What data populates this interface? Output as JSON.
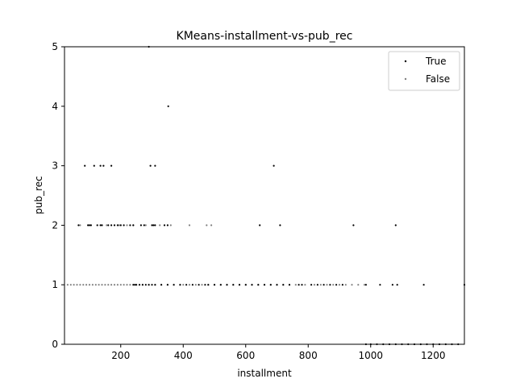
{
  "chart_data": {
    "type": "scatter",
    "title": "KMeans-installment-vs-pub_rec",
    "xlabel": "installment",
    "ylabel": "pub_rec",
    "xlim": [
      20,
      1300
    ],
    "ylim": [
      0,
      5
    ],
    "xticks": [
      200,
      400,
      600,
      800,
      1000,
      1200
    ],
    "yticks": [
      0,
      1,
      2,
      3,
      4,
      5
    ],
    "grid": false,
    "legend_position": "top-right",
    "series": [
      {
        "name": "True",
        "color": "#000000",
        "x": [
          290,
          352,
          85,
          115,
          135,
          145,
          170,
          295,
          310,
          690,
          65,
          95,
          100,
          105,
          125,
          135,
          140,
          160,
          170,
          180,
          190,
          200,
          210,
          230,
          240,
          265,
          275,
          300,
          305,
          310,
          340,
          350,
          645,
          710,
          945,
          1080,
          240,
          245,
          250,
          260,
          270,
          280,
          290,
          300,
          310,
          330,
          350,
          370,
          390,
          410,
          430,
          450,
          470,
          480,
          500,
          520,
          540,
          560,
          580,
          600,
          620,
          640,
          660,
          680,
          700,
          720,
          740,
          770,
          780,
          810,
          830,
          850,
          870,
          890,
          910,
          985,
          1030,
          1070,
          1085,
          1170,
          1300,
          985,
          1000,
          1020,
          1040,
          1060,
          1080,
          1100,
          1120,
          1140,
          1160,
          1180,
          1200,
          1220,
          1240,
          1260,
          1280
        ],
        "y": [
          5,
          4,
          3,
          3,
          3,
          3,
          3,
          3,
          3,
          3,
          2,
          2,
          2,
          2,
          2,
          2,
          2,
          2,
          2,
          2,
          2,
          2,
          2,
          2,
          2,
          2,
          2,
          2,
          2,
          2,
          2,
          2,
          2,
          2,
          2,
          2,
          1,
          1,
          1,
          1,
          1,
          1,
          1,
          1,
          1,
          1,
          1,
          1,
          1,
          1,
          1,
          1,
          1,
          1,
          1,
          1,
          1,
          1,
          1,
          1,
          1,
          1,
          1,
          1,
          1,
          1,
          1,
          1,
          1,
          1,
          1,
          1,
          1,
          1,
          1,
          1,
          1,
          1,
          1,
          1,
          1,
          0,
          0,
          0,
          0,
          0,
          0,
          0,
          0,
          0,
          0,
          0,
          0,
          0,
          0,
          0,
          0
        ]
      },
      {
        "name": "False",
        "color": "#808080",
        "x": [
          70,
          155,
          195,
          220,
          240,
          280,
          325,
          360,
          420,
          475,
          490,
          30,
          40,
          50,
          60,
          70,
          80,
          90,
          100,
          110,
          120,
          130,
          140,
          150,
          160,
          170,
          180,
          190,
          200,
          210,
          220,
          230,
          250,
          270,
          290,
          310,
          330,
          350,
          370,
          390,
          400,
          420,
          440,
          460,
          480,
          500,
          520,
          540,
          560,
          580,
          600,
          620,
          640,
          660,
          680,
          700,
          720,
          740,
          760,
          790,
          820,
          840,
          860,
          880,
          900,
          920,
          940,
          960,
          980
        ],
        "y": [
          2,
          2,
          2,
          2,
          2,
          2,
          2,
          2,
          2,
          2,
          2,
          1,
          1,
          1,
          1,
          1,
          1,
          1,
          1,
          1,
          1,
          1,
          1,
          1,
          1,
          1,
          1,
          1,
          1,
          1,
          1,
          1,
          1,
          1,
          1,
          1,
          1,
          1,
          1,
          1,
          1,
          1,
          1,
          1,
          1,
          1,
          1,
          1,
          1,
          1,
          1,
          1,
          1,
          1,
          1,
          1,
          1,
          1,
          1,
          1,
          1,
          1,
          1,
          1,
          1,
          1,
          1,
          1,
          1
        ]
      }
    ]
  }
}
